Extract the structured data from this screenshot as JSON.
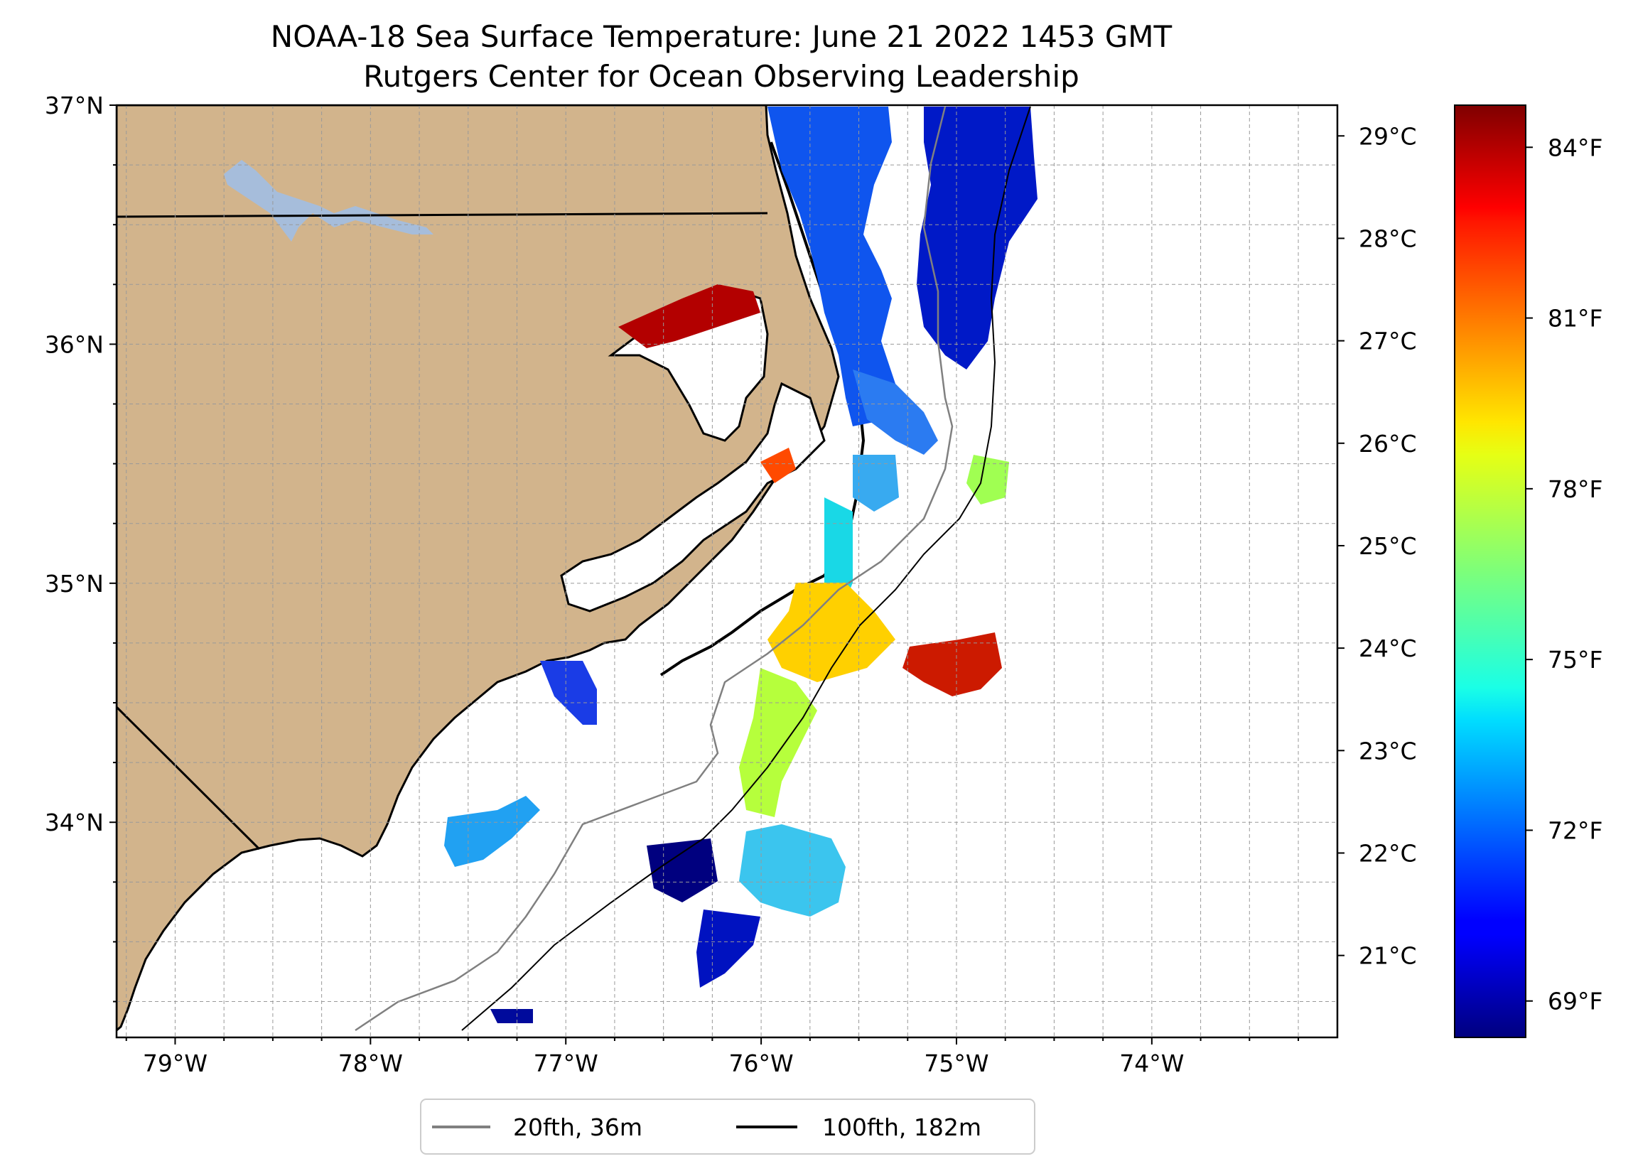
{
  "title": {
    "line1": "NOAA-18 Sea Surface Temperature: June 21 2022 1453 GMT",
    "line2": "Rutgers Center for Ocean Observing Leadership"
  },
  "map": {
    "lon_range": [
      -79.3,
      -73.05
    ],
    "lat_range": [
      33.1,
      37.0
    ],
    "gridlines": true,
    "land_color": "#d2b48c",
    "lake_color": "#a6bddb",
    "x_ticks": [
      {
        "value": -79,
        "label": "79°W"
      },
      {
        "value": -78,
        "label": "78°W"
      },
      {
        "value": -77,
        "label": "77°W"
      },
      {
        "value": -76,
        "label": "76°W"
      },
      {
        "value": -75,
        "label": "75°W"
      },
      {
        "value": -74,
        "label": "74°W"
      }
    ],
    "y_ticks": [
      {
        "value": 37,
        "label": "37°N"
      },
      {
        "value": 36,
        "label": "36°N"
      },
      {
        "value": 35,
        "label": "35°N"
      },
      {
        "value": 34,
        "label": "34°N"
      }
    ]
  },
  "colorbar": {
    "colormap": "jet",
    "celsius_ticks": [
      {
        "value": 29,
        "label": "29°C"
      },
      {
        "value": 28,
        "label": "28°C"
      },
      {
        "value": 27,
        "label": "27°C"
      },
      {
        "value": 26,
        "label": "26°C"
      },
      {
        "value": 25,
        "label": "25°C"
      },
      {
        "value": 24,
        "label": "24°C"
      },
      {
        "value": 23,
        "label": "23°C"
      },
      {
        "value": 22,
        "label": "22°C"
      },
      {
        "value": 21,
        "label": "21°C"
      }
    ],
    "fahrenheit_ticks": [
      {
        "value": 84,
        "label": "84°F"
      },
      {
        "value": 81,
        "label": "81°F"
      },
      {
        "value": 78,
        "label": "78°F"
      },
      {
        "value": 75,
        "label": "75°F"
      },
      {
        "value": 72,
        "label": "72°F"
      },
      {
        "value": 69,
        "label": "69°F"
      }
    ]
  },
  "legend": {
    "items": [
      {
        "label": "20fth, 36m",
        "color": "#808080"
      },
      {
        "label": "100fth, 182m",
        "color": "#000000"
      }
    ]
  }
}
